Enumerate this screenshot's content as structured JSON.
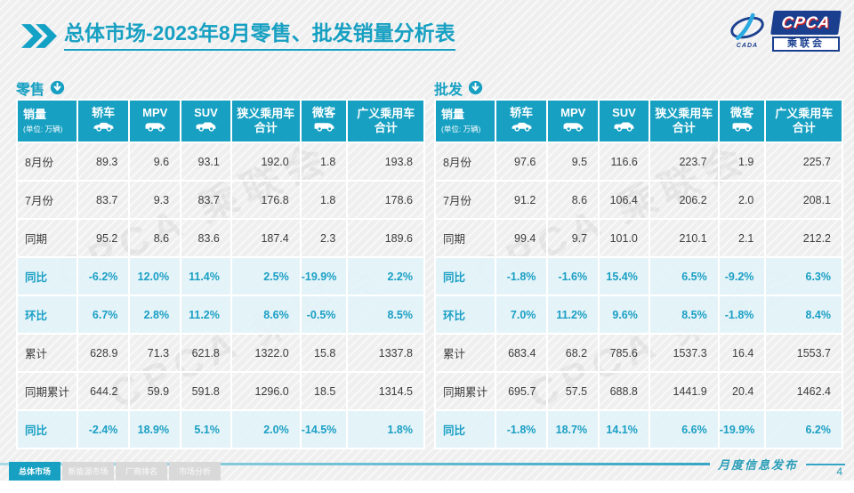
{
  "page": {
    "title_prefix": "总体市场",
    "title_rest": "-2023年8月零售、批发销量分析表",
    "footer_note": "月度信息发布",
    "page_number": "4",
    "watermark_text": "CPCA 乘联会"
  },
  "colors": {
    "teal": "#17a0c2",
    "teal_text": "#1a9fc4",
    "highlight_bg": "#e7f4f9",
    "logo_blue": "#1b3f8f",
    "logo_red": "#cc2229"
  },
  "logo": {
    "acronym": "CPCA",
    "org_name": "乘联会",
    "swoosh_caption": "CADA"
  },
  "tabs": [
    {
      "label": "总体市场",
      "active": true
    },
    {
      "label": "新能源市场",
      "active": false
    },
    {
      "label": "厂商排名",
      "active": false
    },
    {
      "label": "市场分析",
      "active": false
    }
  ],
  "table_columns": [
    {
      "label": "销量",
      "sub": "(单位: 万辆)"
    },
    {
      "label": "轿车",
      "icon": "sedan-icon"
    },
    {
      "label": "MPV",
      "icon": "mpv-icon"
    },
    {
      "label": "SUV",
      "icon": "suv-icon"
    },
    {
      "label": "狭义乘用车",
      "label2": "合计"
    },
    {
      "label": "微客",
      "icon": "microvan-icon"
    },
    {
      "label": "广义乘用车",
      "label2": "合计"
    }
  ],
  "tables": [
    {
      "key": "retail",
      "section_label": "零售",
      "rows": [
        {
          "label": "8月份",
          "highlight": false,
          "values": [
            "89.3",
            "9.6",
            "93.1",
            "192.0",
            "1.8",
            "193.8"
          ]
        },
        {
          "label": "7月份",
          "highlight": false,
          "values": [
            "83.7",
            "9.3",
            "83.7",
            "176.8",
            "1.8",
            "178.6"
          ]
        },
        {
          "label": "同期",
          "highlight": false,
          "values": [
            "95.2",
            "8.6",
            "83.6",
            "187.4",
            "2.3",
            "189.6"
          ]
        },
        {
          "label": "同比",
          "highlight": true,
          "values": [
            "-6.2%",
            "12.0%",
            "11.4%",
            "2.5%",
            "-19.9%",
            "2.2%"
          ]
        },
        {
          "label": "环比",
          "highlight": true,
          "values": [
            "6.7%",
            "2.8%",
            "11.2%",
            "8.6%",
            "-0.5%",
            "8.5%"
          ]
        },
        {
          "label": "累计",
          "highlight": false,
          "values": [
            "628.9",
            "71.3",
            "621.8",
            "1322.0",
            "15.8",
            "1337.8"
          ]
        },
        {
          "label": "同期累计",
          "highlight": false,
          "values": [
            "644.2",
            "59.9",
            "591.8",
            "1296.0",
            "18.5",
            "1314.5"
          ]
        },
        {
          "label": "同比",
          "highlight": true,
          "values": [
            "-2.4%",
            "18.9%",
            "5.1%",
            "2.0%",
            "-14.5%",
            "1.8%"
          ]
        }
      ]
    },
    {
      "key": "wholesale",
      "section_label": "批发",
      "rows": [
        {
          "label": "8月份",
          "highlight": false,
          "values": [
            "97.6",
            "9.5",
            "116.6",
            "223.7",
            "1.9",
            "225.7"
          ]
        },
        {
          "label": "7月份",
          "highlight": false,
          "values": [
            "91.2",
            "8.6",
            "106.4",
            "206.2",
            "2.0",
            "208.1"
          ]
        },
        {
          "label": "同期",
          "highlight": false,
          "values": [
            "99.4",
            "9.7",
            "101.0",
            "210.1",
            "2.1",
            "212.2"
          ]
        },
        {
          "label": "同比",
          "highlight": true,
          "values": [
            "-1.8%",
            "-1.6%",
            "15.4%",
            "6.5%",
            "-9.2%",
            "6.3%"
          ]
        },
        {
          "label": "环比",
          "highlight": true,
          "values": [
            "7.0%",
            "11.2%",
            "9.6%",
            "8.5%",
            "-1.8%",
            "8.4%"
          ]
        },
        {
          "label": "累计",
          "highlight": false,
          "values": [
            "683.4",
            "68.2",
            "785.6",
            "1537.3",
            "16.4",
            "1553.7"
          ]
        },
        {
          "label": "同期累计",
          "highlight": false,
          "values": [
            "695.7",
            "57.5",
            "688.8",
            "1441.9",
            "20.4",
            "1462.4"
          ]
        },
        {
          "label": "同比",
          "highlight": true,
          "values": [
            "-1.8%",
            "18.7%",
            "14.1%",
            "6.6%",
            "-19.9%",
            "6.2%"
          ]
        }
      ]
    }
  ]
}
